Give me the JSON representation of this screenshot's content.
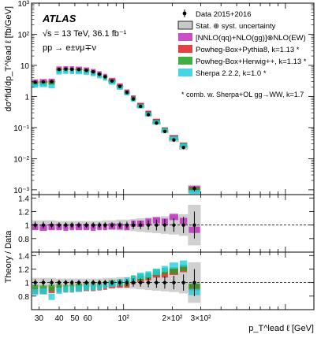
{
  "chart_data": {
    "type": "scatter",
    "experiment": "ATLAS",
    "energy_line": "√s = 13 TeV, 36.1 fb⁻¹",
    "process_line": "pp → e±νμ∓ν",
    "ylabel_top": "dσ^fid/dp_T^lead ℓ [fb/GeV]",
    "ylabel_ratio": "Theory / Data",
    "xlabel": "p_T^lead ℓ [GeV]",
    "x_log": true,
    "y_log_top": true,
    "xlim": [
      27,
      1500
    ],
    "ylim_top": [
      0.0007,
      1000
    ],
    "ylim_ratio": [
      0.6,
      1.45
    ],
    "x_ticks": [
      "30",
      "40",
      "50",
      "60",
      "10²",
      "2×10²",
      "3×10²"
    ],
    "x_tick_values": [
      30,
      40,
      50,
      60,
      100,
      200,
      300
    ],
    "y_ticks_top": [
      "10⁻³",
      "10⁻²",
      "10⁻¹",
      "1",
      "10",
      "10²",
      "10³"
    ],
    "y_ticks_ratio": [
      "0.8",
      "1",
      "1.2",
      "1.4"
    ],
    "y_tick_values_ratio": [
      0.8,
      1.0,
      1.2,
      1.4
    ],
    "bin_edges": [
      27,
      30,
      34,
      38,
      42,
      46,
      50,
      56,
      62,
      68,
      74,
      80,
      90,
      100,
      110,
      120,
      135,
      150,
      170,
      190,
      220,
      250,
      300,
      1500
    ],
    "data": {
      "label": "Data 2015+2016",
      "values": [
        2.85,
        2.95,
        3.0,
        7.4,
        7.6,
        7.5,
        7.3,
        6.9,
        6.2,
        5.2,
        4.3,
        3.15,
        2.1,
        1.35,
        0.83,
        0.48,
        0.26,
        0.14,
        0.075,
        0.04,
        0.023,
        0.0011
      ],
      "rel_unc": [
        0.05,
        0.05,
        0.05,
        0.04,
        0.04,
        0.04,
        0.04,
        0.04,
        0.04,
        0.04,
        0.04,
        0.04,
        0.05,
        0.05,
        0.06,
        0.06,
        0.07,
        0.08,
        0.09,
        0.1,
        0.12,
        0.2
      ]
    },
    "band_label": "Stat. ⊕ syst. uncertainty",
    "band_rel_half_width": [
      0.07,
      0.07,
      0.07,
      0.06,
      0.06,
      0.06,
      0.06,
      0.06,
      0.06,
      0.06,
      0.07,
      0.07,
      0.08,
      0.08,
      0.09,
      0.1,
      0.11,
      0.12,
      0.13,
      0.14,
      0.16,
      0.3
    ],
    "series": [
      {
        "name": "[NNLO(qq)+NLO(gg)]⊗NLO(EW)",
        "color": "#c030c0",
        "pattern": "checker",
        "ratio_top": [
          0.97,
          0.96,
          0.97,
          0.97,
          0.96,
          0.97,
          0.97,
          0.97,
          0.96,
          0.97,
          0.97,
          0.98,
          0.98,
          0.97,
          1.02,
          1.02,
          1.05,
          1.07,
          1.05,
          1.12,
          1.06,
          0.93
        ]
      },
      {
        "name": "Powheg-Box+Pythia8, k=1.13 *",
        "color": "#e02020",
        "pattern": "checker",
        "ratio_bottom": [
          0.88,
          0.88,
          0.89,
          0.9,
          0.9,
          0.9,
          0.91,
          0.92,
          0.92,
          0.93,
          0.94,
          0.96,
          0.97,
          0.97,
          1.02,
          1.05,
          1.08,
          1.12,
          1.12,
          1.16,
          1.2,
          0.93
        ]
      },
      {
        "name": "Powheg-Box+Herwig++, k=1.13 *",
        "color": "#20a020",
        "pattern": "checker",
        "ratio_bottom": [
          0.92,
          0.91,
          0.92,
          0.93,
          0.92,
          0.93,
          0.94,
          0.95,
          0.95,
          0.96,
          0.97,
          0.99,
          1.0,
          1.0,
          1.06,
          1.08,
          1.1,
          1.15,
          1.17,
          1.18,
          1.22,
          0.94
        ]
      },
      {
        "name": "Sherpa 2.2.2, k=1.0 *",
        "color": "#20d0e0",
        "pattern": "checker",
        "ratio_bottom": [
          0.86,
          0.87,
          0.79,
          0.88,
          0.9,
          0.9,
          0.91,
          0.93,
          0.93,
          0.94,
          0.96,
          0.98,
          1.0,
          1.03,
          1.05,
          1.1,
          1.12,
          1.16,
          1.2,
          1.25,
          1.28,
          0.86
        ]
      }
    ],
    "note": "* comb. w. Sherpa+OL gg→WW, k=1.7",
    "legend_position": "top-right"
  }
}
